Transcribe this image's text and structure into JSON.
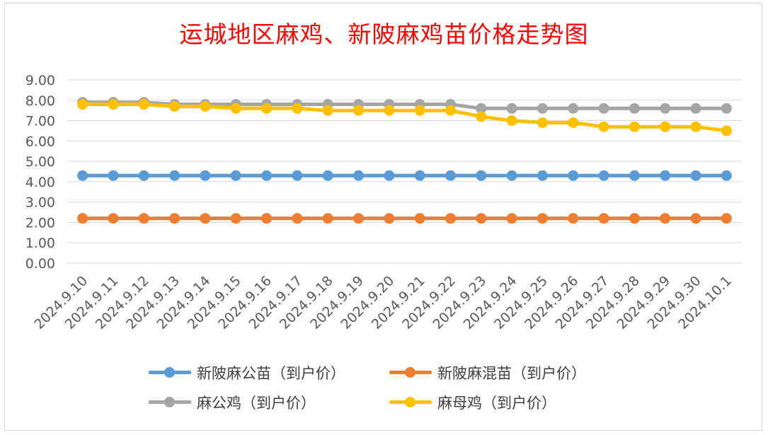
{
  "chart_data": {
    "type": "line",
    "title": "运城地区麻鸡、新陂麻鸡苗价格走势图",
    "categories": [
      "2024.9.10",
      "2024.9.11",
      "2024.9.12",
      "2024.9.13",
      "2024.9.14",
      "2024.9.15",
      "2024.9.16",
      "2024.9.17",
      "2024.9.18",
      "2024.9.19",
      "2024.9.20",
      "2024.9.21",
      "2024.9.22",
      "2024.9.23",
      "2024.9.24",
      "2024.9.25",
      "2024.9.26",
      "2024.9.27",
      "2024.9.28",
      "2024.9.29",
      "2024.9.30",
      "2024.10.1"
    ],
    "y_ticks": [
      "0.00",
      "1.00",
      "2.00",
      "3.00",
      "4.00",
      "5.00",
      "6.00",
      "7.00",
      "8.00",
      "9.00"
    ],
    "ylim": [
      0,
      9
    ],
    "grid": true,
    "legend_position": "bottom",
    "series": [
      {
        "name": "新陂麻公苗（到户价）",
        "color": "#5b9bd5",
        "values": [
          4.3,
          4.3,
          4.3,
          4.3,
          4.3,
          4.3,
          4.3,
          4.3,
          4.3,
          4.3,
          4.3,
          4.3,
          4.3,
          4.3,
          4.3,
          4.3,
          4.3,
          4.3,
          4.3,
          4.3,
          4.3,
          4.3
        ]
      },
      {
        "name": "新陂麻混苗（到户价）",
        "color": "#ed7d31",
        "values": [
          2.2,
          2.2,
          2.2,
          2.2,
          2.2,
          2.2,
          2.2,
          2.2,
          2.2,
          2.2,
          2.2,
          2.2,
          2.2,
          2.2,
          2.2,
          2.2,
          2.2,
          2.2,
          2.2,
          2.2,
          2.2,
          2.2
        ]
      },
      {
        "name": "麻公鸡（到户价）",
        "color": "#a5a5a5",
        "values": [
          7.9,
          7.9,
          7.9,
          7.8,
          7.8,
          7.8,
          7.8,
          7.8,
          7.8,
          7.8,
          7.8,
          7.8,
          7.8,
          7.6,
          7.6,
          7.6,
          7.6,
          7.6,
          7.6,
          7.6,
          7.6,
          7.6
        ]
      },
      {
        "name": "麻母鸡（到户价）",
        "color": "#ffc000",
        "values": [
          7.8,
          7.8,
          7.8,
          7.7,
          7.7,
          7.6,
          7.6,
          7.6,
          7.5,
          7.5,
          7.5,
          7.5,
          7.5,
          7.2,
          7.0,
          6.9,
          6.9,
          6.7,
          6.7,
          6.7,
          6.7,
          6.5
        ]
      }
    ]
  }
}
